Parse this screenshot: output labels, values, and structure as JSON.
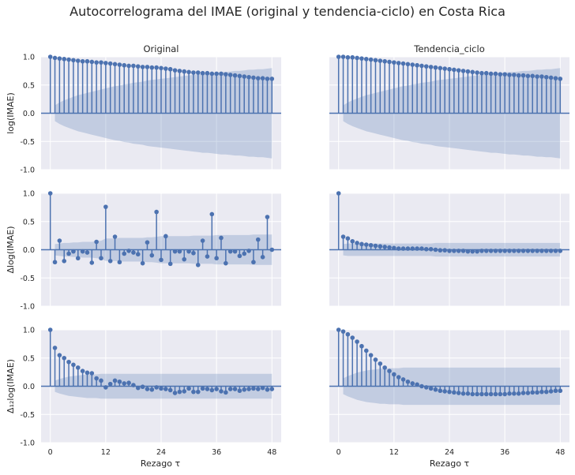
{
  "figure": {
    "title": "Autocorrelograma del IMAE (original y tendencia-ciclo) en Costa Rica",
    "col_titles": [
      "Original",
      "Tendencia_ciclo"
    ],
    "row_ylabels": [
      "log(IMAE)",
      "Δlog(IMAE)",
      "Δ₁₂log(IMAE)"
    ],
    "xlabel": "Rezago τ",
    "colors": {
      "background": "#eaeaf2",
      "stem": "#4c72b0",
      "band": "#4c72b0",
      "grid": "#ffffff"
    }
  },
  "chart_data": [
    {
      "type": "stem",
      "row": 0,
      "col": 0,
      "title": "Original",
      "ylabel": "log(IMAE)",
      "xlabel": "",
      "x": [
        0,
        1,
        2,
        3,
        4,
        5,
        6,
        7,
        8,
        9,
        10,
        11,
        12,
        13,
        14,
        15,
        16,
        17,
        18,
        19,
        20,
        21,
        22,
        23,
        24,
        25,
        26,
        27,
        28,
        29,
        30,
        31,
        32,
        33,
        34,
        35,
        36,
        37,
        38,
        39,
        40,
        41,
        42,
        43,
        44,
        45,
        46,
        47,
        48
      ],
      "values": [
        1.0,
        0.98,
        0.97,
        0.96,
        0.95,
        0.94,
        0.93,
        0.92,
        0.92,
        0.91,
        0.9,
        0.9,
        0.89,
        0.88,
        0.87,
        0.86,
        0.85,
        0.84,
        0.84,
        0.83,
        0.82,
        0.82,
        0.81,
        0.81,
        0.8,
        0.79,
        0.78,
        0.76,
        0.75,
        0.74,
        0.73,
        0.72,
        0.72,
        0.71,
        0.71,
        0.7,
        0.7,
        0.7,
        0.69,
        0.68,
        0.67,
        0.66,
        0.65,
        0.64,
        0.63,
        0.62,
        0.62,
        0.61,
        0.61
      ],
      "band": [
        0.08,
        0.14,
        0.19,
        0.23,
        0.26,
        0.29,
        0.32,
        0.34,
        0.36,
        0.38,
        0.4,
        0.42,
        0.44,
        0.46,
        0.48,
        0.49,
        0.51,
        0.52,
        0.54,
        0.55,
        0.56,
        0.58,
        0.59,
        0.6,
        0.61,
        0.62,
        0.63,
        0.64,
        0.65,
        0.66,
        0.67,
        0.68,
        0.69,
        0.7,
        0.7,
        0.71,
        0.72,
        0.73,
        0.73,
        0.74,
        0.75,
        0.75,
        0.76,
        0.77,
        0.77,
        0.78,
        0.78,
        0.79,
        0.8
      ],
      "xticks": [
        0,
        12,
        24,
        36,
        48
      ],
      "yticks": [
        -1.0,
        -0.5,
        0.0,
        0.5,
        1.0
      ],
      "ylim": [
        -1,
        1
      ],
      "xlim": [
        -2,
        50
      ],
      "show_xticklabels": false,
      "show_yticklabels": true
    },
    {
      "type": "stem",
      "row": 0,
      "col": 1,
      "title": "Tendencia_ciclo",
      "ylabel": "",
      "xlabel": "",
      "x": [
        0,
        1,
        2,
        3,
        4,
        5,
        6,
        7,
        8,
        9,
        10,
        11,
        12,
        13,
        14,
        15,
        16,
        17,
        18,
        19,
        20,
        21,
        22,
        23,
        24,
        25,
        26,
        27,
        28,
        29,
        30,
        31,
        32,
        33,
        34,
        35,
        36,
        37,
        38,
        39,
        40,
        41,
        42,
        43,
        44,
        45,
        46,
        47,
        48
      ],
      "values": [
        1.0,
        1.0,
        0.99,
        0.99,
        0.98,
        0.97,
        0.96,
        0.95,
        0.94,
        0.93,
        0.92,
        0.91,
        0.9,
        0.89,
        0.88,
        0.87,
        0.86,
        0.85,
        0.84,
        0.83,
        0.82,
        0.81,
        0.8,
        0.79,
        0.78,
        0.77,
        0.76,
        0.75,
        0.74,
        0.73,
        0.72,
        0.71,
        0.71,
        0.7,
        0.7,
        0.69,
        0.69,
        0.68,
        0.68,
        0.67,
        0.67,
        0.66,
        0.66,
        0.65,
        0.65,
        0.64,
        0.63,
        0.62,
        0.61
      ],
      "band": [
        0.08,
        0.14,
        0.19,
        0.23,
        0.26,
        0.29,
        0.32,
        0.34,
        0.36,
        0.38,
        0.4,
        0.42,
        0.44,
        0.46,
        0.48,
        0.49,
        0.51,
        0.52,
        0.54,
        0.55,
        0.56,
        0.58,
        0.59,
        0.6,
        0.61,
        0.62,
        0.63,
        0.64,
        0.65,
        0.66,
        0.67,
        0.68,
        0.69,
        0.7,
        0.7,
        0.71,
        0.72,
        0.73,
        0.73,
        0.74,
        0.75,
        0.75,
        0.76,
        0.77,
        0.77,
        0.78,
        0.78,
        0.79,
        0.8
      ],
      "xticks": [
        0,
        12,
        24,
        36,
        48
      ],
      "yticks": [
        -1.0,
        -0.5,
        0.0,
        0.5,
        1.0
      ],
      "ylim": [
        -1,
        1
      ],
      "xlim": [
        -2,
        50
      ],
      "show_xticklabels": false,
      "show_yticklabels": false
    },
    {
      "type": "stem",
      "row": 1,
      "col": 0,
      "title": "",
      "ylabel": "Δlog(IMAE)",
      "xlabel": "",
      "x": [
        0,
        1,
        2,
        3,
        4,
        5,
        6,
        7,
        8,
        9,
        10,
        11,
        12,
        13,
        14,
        15,
        16,
        17,
        18,
        19,
        20,
        21,
        22,
        23,
        24,
        25,
        26,
        27,
        28,
        29,
        30,
        31,
        32,
        33,
        34,
        35,
        36,
        37,
        38,
        39,
        40,
        41,
        42,
        43,
        44,
        45,
        46,
        47,
        48
      ],
      "values": [
        1.0,
        -0.22,
        0.16,
        -0.2,
        -0.07,
        -0.03,
        -0.15,
        -0.03,
        -0.05,
        -0.23,
        0.14,
        -0.15,
        0.76,
        -0.2,
        0.23,
        -0.22,
        -0.07,
        -0.02,
        -0.05,
        -0.08,
        -0.24,
        0.13,
        -0.1,
        0.67,
        -0.18,
        0.24,
        -0.25,
        -0.03,
        -0.03,
        -0.17,
        -0.03,
        -0.06,
        -0.27,
        0.16,
        -0.12,
        0.63,
        -0.15,
        0.21,
        -0.24,
        -0.03,
        -0.03,
        -0.11,
        -0.07,
        -0.02,
        -0.22,
        0.18,
        -0.13,
        0.58,
        0.0
      ],
      "band": [
        0.08,
        0.1,
        0.11,
        0.12,
        0.12,
        0.13,
        0.13,
        0.14,
        0.14,
        0.14,
        0.15,
        0.16,
        0.2,
        0.2,
        0.2,
        0.21,
        0.21,
        0.21,
        0.21,
        0.21,
        0.21,
        0.22,
        0.22,
        0.23,
        0.24,
        0.24,
        0.24,
        0.24,
        0.24,
        0.24,
        0.24,
        0.25,
        0.25,
        0.25,
        0.25,
        0.25,
        0.26,
        0.26,
        0.26,
        0.26,
        0.26,
        0.26,
        0.26,
        0.26,
        0.27,
        0.27,
        0.27,
        0.27,
        0.27
      ],
      "xticks": [
        0,
        12,
        24,
        36,
        48
      ],
      "yticks": [
        -1.0,
        -0.5,
        0.0,
        0.5,
        1.0
      ],
      "ylim": [
        -1,
        1
      ],
      "xlim": [
        -2,
        50
      ],
      "show_xticklabels": false,
      "show_yticklabels": true
    },
    {
      "type": "stem",
      "row": 1,
      "col": 1,
      "title": "",
      "ylabel": "",
      "xlabel": "",
      "x": [
        0,
        1,
        2,
        3,
        4,
        5,
        6,
        7,
        8,
        9,
        10,
        11,
        12,
        13,
        14,
        15,
        16,
        17,
        18,
        19,
        20,
        21,
        22,
        23,
        24,
        25,
        26,
        27,
        28,
        29,
        30,
        31,
        32,
        33,
        34,
        35,
        36,
        37,
        38,
        39,
        40,
        41,
        42,
        43,
        44,
        45,
        46,
        47,
        48
      ],
      "values": [
        1.0,
        0.23,
        0.2,
        0.15,
        0.12,
        0.1,
        0.09,
        0.08,
        0.07,
        0.06,
        0.05,
        0.04,
        0.03,
        0.02,
        0.02,
        0.02,
        0.02,
        0.02,
        0.02,
        0.01,
        0.01,
        0.0,
        -0.01,
        -0.01,
        -0.02,
        -0.02,
        -0.02,
        -0.02,
        -0.03,
        -0.03,
        -0.03,
        -0.02,
        -0.02,
        -0.02,
        -0.02,
        -0.02,
        -0.02,
        -0.02,
        -0.02,
        -0.02,
        -0.02,
        -0.02,
        -0.02,
        -0.02,
        -0.02,
        -0.02,
        -0.02,
        -0.02,
        -0.02
      ],
      "band": [
        0.08,
        0.1,
        0.11,
        0.11,
        0.11,
        0.11,
        0.11,
        0.11,
        0.11,
        0.11,
        0.11,
        0.11,
        0.11,
        0.11,
        0.11,
        0.11,
        0.11,
        0.11,
        0.11,
        0.11,
        0.11,
        0.12,
        0.12,
        0.12,
        0.12,
        0.12,
        0.12,
        0.12,
        0.12,
        0.12,
        0.12,
        0.12,
        0.12,
        0.12,
        0.12,
        0.12,
        0.12,
        0.12,
        0.12,
        0.12,
        0.12,
        0.12,
        0.12,
        0.12,
        0.12,
        0.12,
        0.12,
        0.12,
        0.12
      ],
      "xticks": [
        0,
        12,
        24,
        36,
        48
      ],
      "yticks": [
        -1.0,
        -0.5,
        0.0,
        0.5,
        1.0
      ],
      "ylim": [
        -1,
        1
      ],
      "xlim": [
        -2,
        50
      ],
      "show_xticklabels": false,
      "show_yticklabels": false
    },
    {
      "type": "stem",
      "row": 2,
      "col": 0,
      "title": "",
      "ylabel": "Δ₁₂log(IMAE)",
      "xlabel": "Rezago τ",
      "x": [
        0,
        1,
        2,
        3,
        4,
        5,
        6,
        7,
        8,
        9,
        10,
        11,
        12,
        13,
        14,
        15,
        16,
        17,
        18,
        19,
        20,
        21,
        22,
        23,
        24,
        25,
        26,
        27,
        28,
        29,
        30,
        31,
        32,
        33,
        34,
        35,
        36,
        37,
        38,
        39,
        40,
        41,
        42,
        43,
        44,
        45,
        46,
        47,
        48
      ],
      "values": [
        1.0,
        0.68,
        0.55,
        0.5,
        0.43,
        0.38,
        0.33,
        0.27,
        0.24,
        0.23,
        0.14,
        0.1,
        -0.02,
        0.04,
        0.1,
        0.08,
        0.05,
        0.06,
        0.02,
        -0.03,
        -0.01,
        -0.05,
        -0.06,
        -0.02,
        -0.04,
        -0.05,
        -0.07,
        -0.12,
        -0.1,
        -0.09,
        -0.04,
        -0.1,
        -0.1,
        -0.04,
        -0.05,
        -0.07,
        -0.05,
        -0.09,
        -0.11,
        -0.05,
        -0.05,
        -0.08,
        -0.06,
        -0.05,
        -0.04,
        -0.05,
        -0.03,
        -0.06,
        -0.05
      ],
      "band": [
        0.08,
        0.1,
        0.13,
        0.15,
        0.17,
        0.18,
        0.19,
        0.2,
        0.21,
        0.21,
        0.21,
        0.22,
        0.22,
        0.22,
        0.22,
        0.22,
        0.22,
        0.22,
        0.22,
        0.22,
        0.22,
        0.22,
        0.22,
        0.22,
        0.22,
        0.22,
        0.22,
        0.22,
        0.22,
        0.22,
        0.22,
        0.22,
        0.22,
        0.22,
        0.22,
        0.22,
        0.22,
        0.22,
        0.22,
        0.22,
        0.22,
        0.22,
        0.22,
        0.22,
        0.22,
        0.22,
        0.22,
        0.22,
        0.22
      ],
      "xticks": [
        0,
        12,
        24,
        36,
        48
      ],
      "yticks": [
        -1.0,
        -0.5,
        0.0,
        0.5,
        1.0
      ],
      "ylim": [
        -1,
        1
      ],
      "xlim": [
        -2,
        50
      ],
      "show_xticklabels": true,
      "show_yticklabels": true
    },
    {
      "type": "stem",
      "row": 2,
      "col": 1,
      "title": "",
      "ylabel": "",
      "xlabel": "Rezago τ",
      "x": [
        0,
        1,
        2,
        3,
        4,
        5,
        6,
        7,
        8,
        9,
        10,
        11,
        12,
        13,
        14,
        15,
        16,
        17,
        18,
        19,
        20,
        21,
        22,
        23,
        24,
        25,
        26,
        27,
        28,
        29,
        30,
        31,
        32,
        33,
        34,
        35,
        36,
        37,
        38,
        39,
        40,
        41,
        42,
        43,
        44,
        45,
        46,
        47,
        48
      ],
      "values": [
        1.0,
        0.97,
        0.92,
        0.86,
        0.79,
        0.71,
        0.63,
        0.55,
        0.47,
        0.4,
        0.33,
        0.27,
        0.21,
        0.16,
        0.12,
        0.08,
        0.05,
        0.03,
        0.0,
        -0.02,
        -0.04,
        -0.06,
        -0.08,
        -0.09,
        -0.1,
        -0.11,
        -0.12,
        -0.13,
        -0.13,
        -0.14,
        -0.14,
        -0.14,
        -0.14,
        -0.14,
        -0.14,
        -0.14,
        -0.14,
        -0.13,
        -0.13,
        -0.13,
        -0.12,
        -0.12,
        -0.11,
        -0.11,
        -0.1,
        -0.1,
        -0.09,
        -0.08,
        -0.08
      ],
      "band": [
        0.08,
        0.14,
        0.18,
        0.21,
        0.24,
        0.26,
        0.28,
        0.29,
        0.3,
        0.31,
        0.31,
        0.32,
        0.32,
        0.32,
        0.33,
        0.33,
        0.33,
        0.33,
        0.33,
        0.33,
        0.33,
        0.33,
        0.33,
        0.33,
        0.33,
        0.33,
        0.33,
        0.33,
        0.33,
        0.33,
        0.33,
        0.33,
        0.33,
        0.33,
        0.33,
        0.33,
        0.33,
        0.33,
        0.33,
        0.33,
        0.33,
        0.33,
        0.33,
        0.33,
        0.33,
        0.33,
        0.33,
        0.33,
        0.33
      ],
      "xticks": [
        0,
        12,
        24,
        36,
        48
      ],
      "yticks": [
        -1.0,
        -0.5,
        0.0,
        0.5,
        1.0
      ],
      "ylim": [
        -1,
        1
      ],
      "xlim": [
        -2,
        50
      ],
      "show_xticklabels": true,
      "show_yticklabels": false
    }
  ]
}
